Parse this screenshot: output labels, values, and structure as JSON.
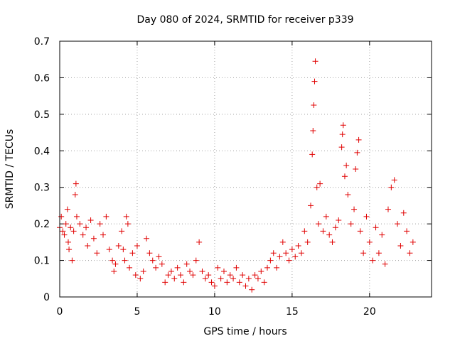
{
  "chart_data": {
    "type": "scatter",
    "title": "Day 080 of 2024, SRMTID for receiver p339",
    "xlabel": "GPS time / hours",
    "ylabel": "SRMTID / TECUs",
    "xlim": [
      0,
      24
    ],
    "ylim": [
      0,
      0.7
    ],
    "x_ticks": [
      0,
      5,
      10,
      15,
      20
    ],
    "x_tick_labels": [
      "0",
      "5",
      "10",
      "15",
      "20"
    ],
    "y_ticks": [
      0,
      0.1,
      0.2,
      0.3,
      0.4,
      0.5,
      0.6,
      0.7
    ],
    "y_tick_labels": [
      "0",
      "0.1",
      "0.2",
      "0.3",
      "0.4",
      "0.5",
      "0.6",
      "0.7"
    ],
    "grid": true,
    "marker": "plus",
    "color": "#e00000",
    "series": [
      {
        "name": "SRMTID",
        "points": [
          [
            0.0,
            0.19
          ],
          [
            0.1,
            0.22
          ],
          [
            0.2,
            0.18
          ],
          [
            0.3,
            0.17
          ],
          [
            0.4,
            0.2
          ],
          [
            0.5,
            0.24
          ],
          [
            0.55,
            0.15
          ],
          [
            0.6,
            0.13
          ],
          [
            0.7,
            0.19
          ],
          [
            0.8,
            0.1
          ],
          [
            0.9,
            0.18
          ],
          [
            1.0,
            0.28
          ],
          [
            1.05,
            0.31
          ],
          [
            1.1,
            0.22
          ],
          [
            1.3,
            0.2
          ],
          [
            1.5,
            0.17
          ],
          [
            1.7,
            0.19
          ],
          [
            1.8,
            0.14
          ],
          [
            2.0,
            0.21
          ],
          [
            2.2,
            0.16
          ],
          [
            2.4,
            0.12
          ],
          [
            2.6,
            0.2
          ],
          [
            2.8,
            0.17
          ],
          [
            3.0,
            0.22
          ],
          [
            3.2,
            0.13
          ],
          [
            3.4,
            0.1
          ],
          [
            3.5,
            0.07
          ],
          [
            3.6,
            0.09
          ],
          [
            3.8,
            0.14
          ],
          [
            4.0,
            0.18
          ],
          [
            4.1,
            0.13
          ],
          [
            4.2,
            0.1
          ],
          [
            4.3,
            0.22
          ],
          [
            4.4,
            0.2
          ],
          [
            4.5,
            0.08
          ],
          [
            4.7,
            0.12
          ],
          [
            4.9,
            0.06
          ],
          [
            5.0,
            0.14
          ],
          [
            5.2,
            0.05
          ],
          [
            5.4,
            0.07
          ],
          [
            5.6,
            0.16
          ],
          [
            5.8,
            0.12
          ],
          [
            6.0,
            0.1
          ],
          [
            6.2,
            0.08
          ],
          [
            6.4,
            0.11
          ],
          [
            6.6,
            0.09
          ],
          [
            6.8,
            0.04
          ],
          [
            7.0,
            0.06
          ],
          [
            7.2,
            0.07
          ],
          [
            7.4,
            0.05
          ],
          [
            7.6,
            0.08
          ],
          [
            7.8,
            0.06
          ],
          [
            8.0,
            0.04
          ],
          [
            8.2,
            0.09
          ],
          [
            8.4,
            0.07
          ],
          [
            8.6,
            0.06
          ],
          [
            8.8,
            0.1
          ],
          [
            9.0,
            0.15
          ],
          [
            9.2,
            0.07
          ],
          [
            9.4,
            0.05
          ],
          [
            9.6,
            0.06
          ],
          [
            9.8,
            0.04
          ],
          [
            10.0,
            0.03
          ],
          [
            10.2,
            0.08
          ],
          [
            10.4,
            0.05
          ],
          [
            10.6,
            0.07
          ],
          [
            10.8,
            0.04
          ],
          [
            11.0,
            0.06
          ],
          [
            11.2,
            0.05
          ],
          [
            11.4,
            0.08
          ],
          [
            11.6,
            0.04
          ],
          [
            11.8,
            0.06
          ],
          [
            12.0,
            0.03
          ],
          [
            12.2,
            0.05
          ],
          [
            12.4,
            0.02
          ],
          [
            12.6,
            0.06
          ],
          [
            12.8,
            0.05
          ],
          [
            13.0,
            0.07
          ],
          [
            13.2,
            0.04
          ],
          [
            13.4,
            0.08
          ],
          [
            13.6,
            0.1
          ],
          [
            13.8,
            0.12
          ],
          [
            14.0,
            0.08
          ],
          [
            14.2,
            0.11
          ],
          [
            14.4,
            0.15
          ],
          [
            14.6,
            0.12
          ],
          [
            14.8,
            0.1
          ],
          [
            15.0,
            0.13
          ],
          [
            15.2,
            0.11
          ],
          [
            15.4,
            0.14
          ],
          [
            15.6,
            0.12
          ],
          [
            15.8,
            0.18
          ],
          [
            16.0,
            0.15
          ],
          [
            16.2,
            0.25
          ],
          [
            16.3,
            0.39
          ],
          [
            16.35,
            0.455
          ],
          [
            16.4,
            0.525
          ],
          [
            16.45,
            0.59
          ],
          [
            16.5,
            0.645
          ],
          [
            16.6,
            0.3
          ],
          [
            16.7,
            0.2
          ],
          [
            16.8,
            0.31
          ],
          [
            17.0,
            0.18
          ],
          [
            17.2,
            0.22
          ],
          [
            17.4,
            0.17
          ],
          [
            17.6,
            0.15
          ],
          [
            17.8,
            0.19
          ],
          [
            18.0,
            0.21
          ],
          [
            18.2,
            0.41
          ],
          [
            18.25,
            0.445
          ],
          [
            18.3,
            0.47
          ],
          [
            18.4,
            0.33
          ],
          [
            18.5,
            0.36
          ],
          [
            18.6,
            0.28
          ],
          [
            18.8,
            0.2
          ],
          [
            19.0,
            0.24
          ],
          [
            19.1,
            0.35
          ],
          [
            19.2,
            0.395
          ],
          [
            19.3,
            0.43
          ],
          [
            19.4,
            0.18
          ],
          [
            19.6,
            0.12
          ],
          [
            19.8,
            0.22
          ],
          [
            20.0,
            0.15
          ],
          [
            20.2,
            0.1
          ],
          [
            20.4,
            0.19
          ],
          [
            20.6,
            0.12
          ],
          [
            20.8,
            0.17
          ],
          [
            21.0,
            0.09
          ],
          [
            21.2,
            0.24
          ],
          [
            21.4,
            0.3
          ],
          [
            21.6,
            0.32
          ],
          [
            21.8,
            0.2
          ],
          [
            22.0,
            0.14
          ],
          [
            22.2,
            0.23
          ],
          [
            22.4,
            0.18
          ],
          [
            22.6,
            0.12
          ],
          [
            22.8,
            0.15
          ]
        ]
      }
    ]
  }
}
